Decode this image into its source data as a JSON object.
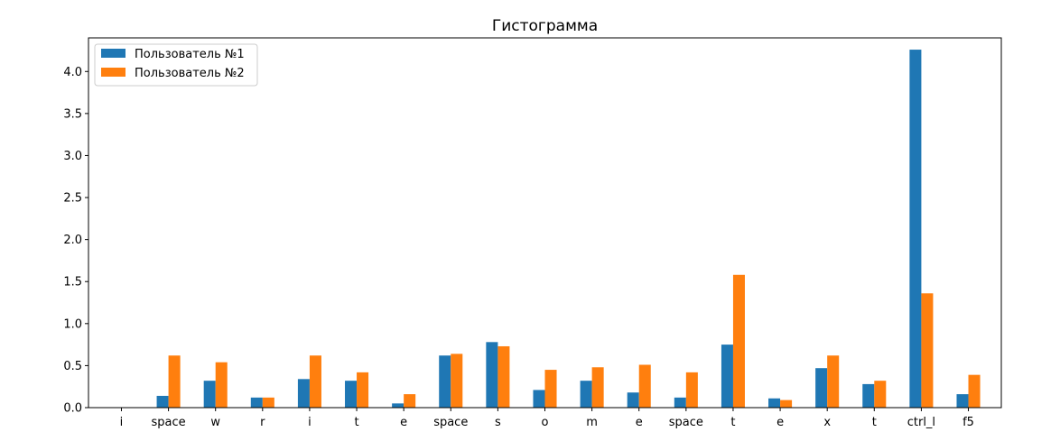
{
  "chart_data": {
    "type": "bar",
    "title": "Гистограмма",
    "xlabel": "",
    "ylabel": "",
    "categories": [
      "i",
      "space",
      "w",
      "r",
      "i",
      "t",
      "e",
      "space",
      "s",
      "o",
      "m",
      "e",
      "space",
      "t",
      "e",
      "x",
      "t",
      "ctrl_l",
      "f5"
    ],
    "series": [
      {
        "name": "Пользователь №1",
        "color": "#1f77b4",
        "values": [
          0.0,
          0.14,
          0.32,
          0.12,
          0.34,
          0.32,
          0.05,
          0.62,
          0.78,
          0.21,
          0.32,
          0.18,
          0.12,
          0.75,
          0.11,
          0.47,
          0.28,
          4.26,
          0.16
        ]
      },
      {
        "name": "Пользователь №2",
        "color": "#ff7f0e",
        "values": [
          0.0,
          0.62,
          0.54,
          0.12,
          0.62,
          0.42,
          0.16,
          0.64,
          0.73,
          0.45,
          0.48,
          0.51,
          0.42,
          1.58,
          0.09,
          0.62,
          0.32,
          1.36,
          0.39
        ]
      }
    ],
    "ylim": [
      0,
      4.4
    ],
    "yticks": [
      0.0,
      0.5,
      1.0,
      1.5,
      2.0,
      2.5,
      3.0,
      3.5,
      4.0
    ],
    "ytick_labels": [
      "0.0",
      "0.5",
      "1.0",
      "1.5",
      "2.0",
      "2.5",
      "3.0",
      "3.5",
      "4.0"
    ],
    "legend_position": "top-left",
    "grid": false
  }
}
